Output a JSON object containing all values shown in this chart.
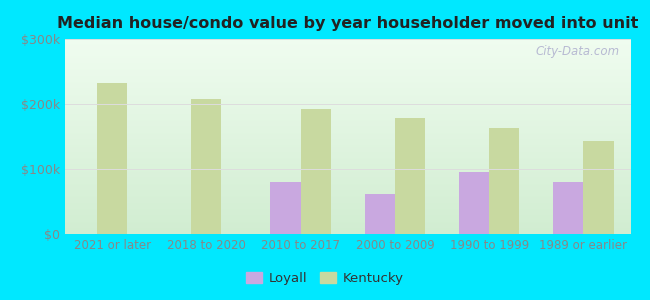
{
  "title": "Median house/condo value by year householder moved into unit",
  "categories": [
    "2021 or later",
    "2018 to 2020",
    "2010 to 2017",
    "2000 to 2009",
    "1990 to 1999",
    "1989 or earlier"
  ],
  "loyall_values": [
    null,
    null,
    80000,
    62000,
    95000,
    80000
  ],
  "kentucky_values": [
    232000,
    208000,
    193000,
    178000,
    163000,
    143000
  ],
  "loyall_color": "#c9a8e0",
  "kentucky_color": "#c8d9a0",
  "background_outer": "#00e8ff",
  "bar_width": 0.32,
  "ylim": [
    0,
    300000
  ],
  "yticks": [
    0,
    100000,
    200000,
    300000
  ],
  "ytick_labels": [
    "$0",
    "$100k",
    "$200k",
    "$300k"
  ],
  "watermark": "City-Data.com",
  "legend_labels": [
    "Loyall",
    "Kentucky"
  ],
  "grid_color": "#dddddd",
  "tick_color": "#888888",
  "title_color": "#222222"
}
